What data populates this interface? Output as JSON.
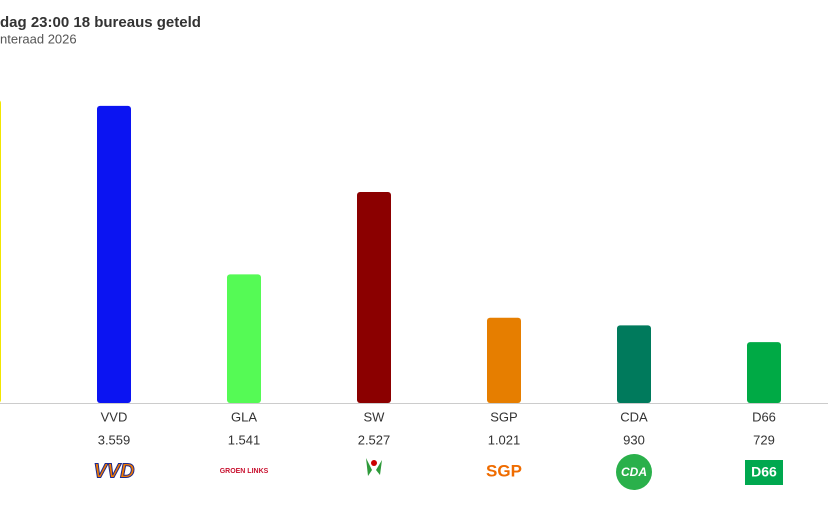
{
  "chart_data": {
    "type": "bar",
    "title": "dag 23:00 18 bureaus geteld",
    "subtitle": "nteraad 2026",
    "categories": [
      null,
      "VVD",
      "GLA",
      "SW",
      "SGP",
      "CDA",
      "D66"
    ],
    "values": [
      3630,
      3559,
      1541,
      2527,
      1021,
      930,
      729
    ],
    "value_labels": [
      null,
      "3.559",
      "1.541",
      "2.527",
      "1.021",
      "930",
      "729"
    ],
    "colors": [
      "#f2e600",
      "#0b14f2",
      "#55fa55",
      "#8b0000",
      "#e67e00",
      "#007a5c",
      "#00aa45"
    ],
    "logos": [
      null,
      "VVD",
      "GROEN LINKS",
      null,
      "SGP",
      "CDA",
      "D66"
    ],
    "ylim": [
      0,
      4000
    ]
  }
}
